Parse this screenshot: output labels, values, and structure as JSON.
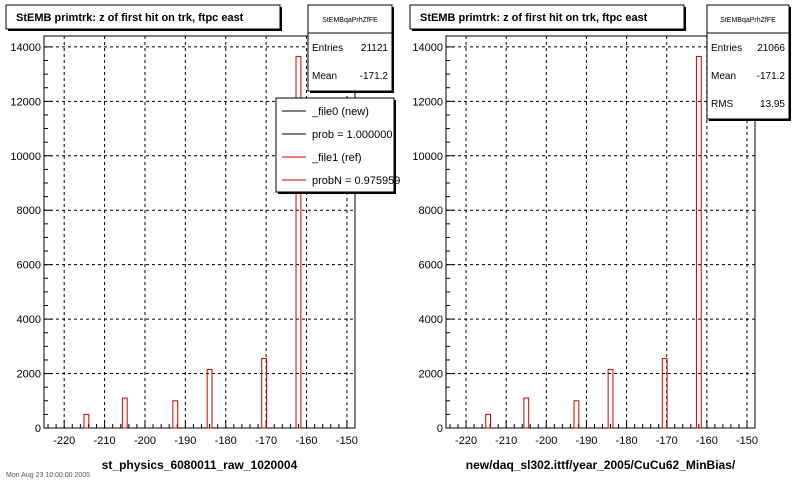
{
  "footer_text": "Mon Aug 23 10:00:00 2005",
  "chart_data": [
    {
      "type": "bar",
      "title": "StEMB primtrk: z of first hit on trk, ftpc east",
      "xlabel": "st_physics_6080011_raw_1020004",
      "xlim": [
        -225,
        -148
      ],
      "ylim": [
        0,
        14400
      ],
      "xticks": [
        -220,
        -210,
        -200,
        -190,
        -180,
        -170,
        -160,
        -150
      ],
      "yticks": [
        0,
        2000,
        4000,
        6000,
        8000,
        10000,
        12000,
        14000
      ],
      "grid": true,
      "stats": {
        "name": "StEMBqaPrhZfFE",
        "entries_label": "Entries",
        "entries": "21121",
        "mean_label": "Mean",
        "mean": "-171.2"
      },
      "legend": {
        "placement": "top-right",
        "entries": [
          {
            "label": "_file0 (new)",
            "color": "#000000"
          },
          {
            "label": "prob = 1.000000",
            "color": "#000000"
          },
          {
            "label": "_file1 (ref)",
            "color": "#cc0000"
          },
          {
            "label": "probN = 0.975959",
            "color": "#cc0000"
          }
        ]
      },
      "series": [
        {
          "color": "#cc0000",
          "x": [
            -214.5,
            -205.0,
            -192.5,
            -184.0,
            -170.5,
            -162.0
          ],
          "values": [
            500,
            1100,
            1000,
            2150,
            2550,
            13650
          ]
        }
      ]
    },
    {
      "type": "bar",
      "title": "StEMB primtrk: z of first hit on trk, ftpc east",
      "xlabel": "new/daq_sl302.ittf/year_2005/CuCu62_MinBias/",
      "xlim": [
        -225,
        -148
      ],
      "ylim": [
        0,
        14400
      ],
      "xticks": [
        -220,
        -210,
        -200,
        -190,
        -180,
        -170,
        -160,
        -150
      ],
      "yticks": [
        0,
        2000,
        4000,
        6000,
        8000,
        10000,
        12000,
        14000
      ],
      "grid": true,
      "stats": {
        "name": "StEMBqaPrhZfFE",
        "entries_label": "Entries",
        "entries": "21066",
        "mean_label": "Mean",
        "mean": "-171.2",
        "rms_label": "RMS",
        "rms": "13.95"
      },
      "series": [
        {
          "color": "#cc0000",
          "x": [
            -214.5,
            -205.0,
            -192.5,
            -184.0,
            -170.5,
            -162.0
          ],
          "values": [
            500,
            1100,
            1000,
            2150,
            2550,
            13650
          ]
        }
      ]
    }
  ]
}
